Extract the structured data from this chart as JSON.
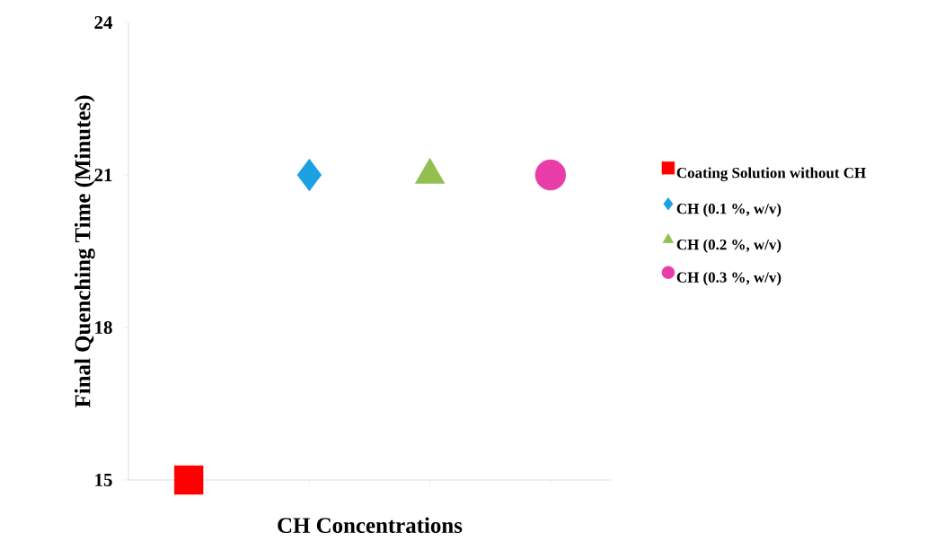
{
  "chart_data": {
    "type": "scatter",
    "xlabel": "CH Concentrations",
    "ylabel": "Final Quenching Time (Minutes)",
    "categories": [
      null,
      null,
      null,
      null
    ],
    "ylim": [
      15,
      24
    ],
    "yticks": [
      15,
      18,
      21,
      24
    ],
    "tick_labels": "y",
    "legend": "right",
    "series": [
      {
        "name": "Coating Solution without CH",
        "color": "#ff0000",
        "marker": "square",
        "values": [
          15,
          null,
          null,
          null
        ]
      },
      {
        "name": "CH (0.1 %, w/v)",
        "color": "#1ba1e2",
        "marker": "diamond",
        "values": [
          null,
          21,
          null,
          null
        ]
      },
      {
        "name": "CH (0.2 %, w/v)",
        "color": "#92c050",
        "marker": "triangle",
        "values": [
          null,
          null,
          21,
          null
        ]
      },
      {
        "name": "CH (0.3 %, w/v)",
        "color": "#e83ca8",
        "marker": "circle",
        "values": [
          null,
          null,
          null,
          21
        ]
      }
    ]
  }
}
